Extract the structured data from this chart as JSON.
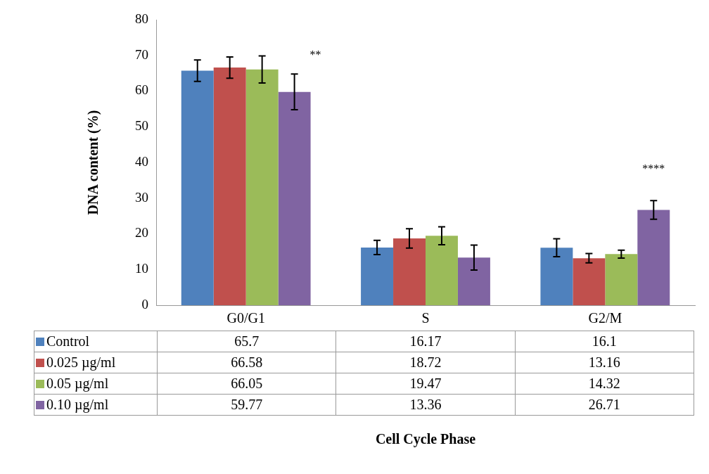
{
  "chart_data": {
    "type": "bar",
    "ylabel": "DNA content (%)",
    "categories": [
      "G0/G1",
      "S",
      "G2/M"
    ],
    "series": [
      {
        "name": "Control",
        "color": "#4f81bd",
        "values": [
          65.7,
          16.17,
          16.1
        ],
        "errors": [
          3,
          2,
          2.5
        ]
      },
      {
        "name": "0.025 µg/ml",
        "color": "#c0504d",
        "values": [
          66.58,
          18.72,
          13.16
        ],
        "errors": [
          3,
          2.7,
          1.3
        ]
      },
      {
        "name": "0.05 µg/ml",
        "color": "#9bbb59",
        "values": [
          66.05,
          19.47,
          14.32
        ],
        "errors": [
          3.8,
          2.5,
          1.1
        ]
      },
      {
        "name": "0.10 µg/ml",
        "color": "#8064a2",
        "values": [
          59.77,
          13.36,
          26.71
        ],
        "errors": [
          5,
          3.5,
          2.6
        ]
      }
    ],
    "ylim": [
      0,
      80
    ],
    "yticks": [
      0,
      10,
      20,
      30,
      40,
      50,
      60,
      70,
      80
    ],
    "grid": false,
    "legend": "bottom",
    "data_labels": true,
    "annotations": [
      "**",
      "****",
      "Cell Cycle Phase"
    ]
  }
}
